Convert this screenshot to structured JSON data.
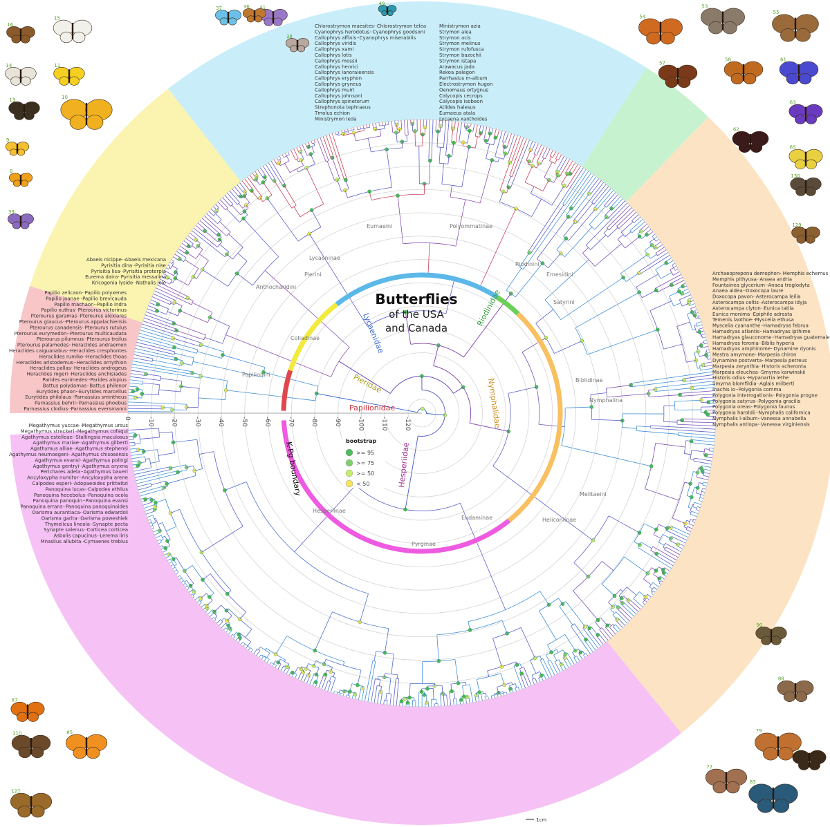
{
  "title": {
    "line1": "Butterflies",
    "line2": "of the USA",
    "line3": "and Canada"
  },
  "kpg_label": "K-Pg boundary",
  "axis_ticks": [
    "0",
    "-10",
    "-20",
    "-30",
    "-40",
    "-50",
    "-60",
    "-70",
    "-80",
    "-90",
    "-100",
    "-110",
    "-120"
  ],
  "legend": {
    "title": "bootstrap",
    "items": [
      {
        "label": ">= 95",
        "color": "#4cbb5a"
      },
      {
        "label": ">= 75",
        "color": "#7fd06a"
      },
      {
        "label": ">= 50",
        "color": "#c8ec6a"
      },
      {
        "label": "< 50",
        "color": "#f6e45a"
      }
    ]
  },
  "scale_bar": "1cm",
  "families": [
    {
      "name": "Papilionidae",
      "bg": "#f9c6c8",
      "arc": "#e0474c",
      "text": "#d0303a"
    },
    {
      "name": "Pieridae",
      "bg": "#fbf4b0",
      "arc": "#f2ea3c",
      "text": "#a89a10"
    },
    {
      "name": "Lycaenidae",
      "bg": "#c9eef9",
      "arc": "#5bb8e8",
      "text": "#3a6ad0"
    },
    {
      "name": "Riodinidae",
      "bg": "#c6f2cf",
      "arc": "#6ccf5a",
      "text": "#3aa040"
    },
    {
      "name": "Nymphalidae",
      "bg": "#fbe3c3",
      "arc": "#f8c060",
      "text": "#d09020"
    },
    {
      "name": "Hesperiidae",
      "bg": "#f6c1f4",
      "arc": "#ee5be0",
      "text": "#a03090"
    }
  ],
  "clades": [
    "Lycaeninae",
    "Eumaeini",
    "Polyommatinae",
    "Anthocharidini",
    "Pierini",
    "Coliadinae",
    "Papilionini",
    "Riodinini",
    "Emesidini",
    "Satyrini",
    "Biblidinae",
    "Nymphalina",
    "Melitaeini",
    "Heliconiinae",
    "Eudaminae",
    "Pyrginae",
    "Hesperiinae"
  ],
  "species": {
    "Papilionidae": [
      "Papilio zelicaon··Papilio polyxenes",
      "Papilio joanae··Papilio brevicauda",
      "Papilio machaon··Papilio indra",
      "Papilio xuthus··Pterourus victorinus",
      "Pterourus garamas··Pterourus alexiares",
      "Pterourus glaucus··Pterourus appalachiensis",
      "Pterourus canadensis··Pterourus rutulus",
      "Pterourus eurymedon··Pterourus multicaudata",
      "Pterourus pilumnus··Pterourus troilus",
      "Pterourus palamedes··Heraclides andraemon",
      "Heraclides caiguanabus··Heraclides cresphontes",
      "Heraclides rumiko··Heraclides thoas",
      "Heraclides aristodemus··Heraclides ornythion",
      "Heraclides pallas··Heraclides androgeus",
      "Heraclides rogeri··Heraclides anchisiades",
      "Parides eurimedes··Parides alopius",
      "Battus polydamas··Battus philenor",
      "Eurytides phaon··Eurytides marcellus",
      "Eurytides philolaus··Parnassius smintheus",
      "Parnassius behrii··Parnassius phoebus",
      "Parnassius clodius··Parnassius eversmanni"
    ],
    "Pieridae": [
      "Abaeis nicippe··Abaeis mexicana",
      "Pyrisitia dina··Pyrisitia nise",
      "Pyrisitia lisa··Pyrisitia proterpia",
      "Eurema daira··Pyrisitia messalina",
      "Kricogonia lyside··Nathalis iole"
    ],
    "Lycaenidae": [
      "Chlorostrymon maesites··Chlorostrymon telea",
      "Cyanophrys herodotus··Cyanophrys goodsoni",
      "Callophrys affinis··Cyanophrys miserabilis",
      "Callophrys viridis",
      "Callophrys xami",
      "Callophrys lotis",
      "Callophrys mossii",
      "Callophrys henrici",
      "Callophrys lanoraieensis",
      "Callophrys eryphon",
      "Callophrys gryneus",
      "Callophrys muiri",
      "Callophrys johnsoni",
      "Callophrys spinetorum",
      "Strephonota tephraeus",
      "Tmolus echion",
      "Ministrymon leda",
      "Ministrymon azia",
      "Strymon alea",
      "Strymon acis",
      "Strymon melinus",
      "Strymon rufofusca",
      "Strymon bazochii",
      "Strymon istapa",
      "Arawacus jada",
      "Rekoa palegon",
      "Parrhasius m-album",
      "Electrostrymon hugon",
      "Oenomaus ortygnus",
      "Calycopis cecrops",
      "Calycopis isobeon",
      "Atlides halesus",
      "Eumaeus atala",
      "Lycaena xanthoides"
    ],
    "Nymphalidae": [
      "Archaeoprepona demophon··Memphis echemus",
      "Memphis pithyusa··Anaea andria",
      "Fountainea glycerium··Anaea troglodyta",
      "Anaea aidea··Doxocopa laure",
      "Doxocopa pavon··Asterocampa leilia",
      "Asterocampa celtis··Asterocampa idyja",
      "Asterocampa clyton··Eunica tatila",
      "Eunica monima··Epiphile adrasta",
      "Temenis laothoe··Myscelia ethusa",
      "Myscelia cyananthe··Hamadryas februa",
      "Hamadryas atlantis··Hamadryas ipthime",
      "Hamadryas glauconome··Hamadryas guatemalena",
      "Hamadryas feronia··Biblis hyperia",
      "Hamadryas amphinome··Dynamine dyonis",
      "Mestra amymone··Marpesia chiron",
      "Dynamine postverta··Marpesia petreus",
      "Marpesia zerynthia··Historis acheronta",
      "Marpesia eleuchea··Smyrna karwinskii",
      "Historis odius··Hypanartia lethe",
      "Smyrna blomfildia··Aglais milberti",
      "Inachis io··Polygonia comma",
      "Polygonia interrogationis··Polygonia progne",
      "Polygonia satyrus··Polygonia gracilis",
      "Polygonia oreas··Polygonia faunus",
      "Polygonia haroldii··Nymphalis californica",
      "Nymphalis l-album··Vanessa annabella",
      "Nymphalis antiopa··Vanessa virginiensis"
    ],
    "Hesperiidae": [
      "Megathymus yuccae··Megathymus ursus",
      "Megathymus streckeri··Megathymus cofaqui",
      "Agathymus estelleae··Stallingsia maculosus",
      "Agathymus mariae··Agathymus gilberti",
      "Agathymus alliae··Agathymus stephensi",
      "Agathymus neumoegeni··Agathymus chisosensis",
      "Agathymus evansi··Agathymus polingi",
      "Agathymus gentryi··Agathymus aryxna",
      "Perichares adela··Agathymus baueri",
      "Ancyloxypha numitor··Ancyloxypha arene",
      "Calpodes esperi··Adopaeoides prittwitzi",
      "Panoquina lucas··Calpodes ethlius",
      "Panoquina hecebolus··Panoquina ocola",
      "Panoquina panoquin··Panoquina evansi",
      "Panoquina errans··Panoquina panoquinoides",
      "Oarisma aurantiaca··Oarisma edwardsii",
      "Oarisma garita··Oarisma poweshiek",
      "Thymelicus lineola··Synapte pecta",
      "Synapte salenus··Corticea corticea",
      "Asbolis capucinus··Lerema liris",
      "Mnasilus allubita··Cymaenes trebius"
    ]
  },
  "photos": [
    {
      "n": "16",
      "color": "#8a5a2a"
    },
    {
      "n": "15",
      "color": "#f2f0ea"
    },
    {
      "n": "14",
      "color": "#e8e4da"
    },
    {
      "n": "11",
      "color": "#f5d020"
    },
    {
      "n": "13",
      "color": "#3a3020"
    },
    {
      "n": "10",
      "color": "#f0b020"
    },
    {
      "n": "9",
      "color": "#f5c030"
    },
    {
      "n": "8",
      "color": "#f0a018"
    },
    {
      "n": "39",
      "color": "#8a6ac0"
    },
    {
      "n": "37",
      "color": "#6ac0e8"
    },
    {
      "n": "41",
      "color": "#9a78c8"
    },
    {
      "n": "36",
      "color": "#c07830"
    },
    {
      "n": "38",
      "color": "#b8a8a0"
    },
    {
      "n": "49",
      "color": "#2a9ab0"
    },
    {
      "n": "54",
      "color": "#d06a20"
    },
    {
      "n": "53",
      "color": "#8a7a6a"
    },
    {
      "n": "55",
      "color": "#9a6a3a"
    },
    {
      "n": "57",
      "color": "#7a3a1a"
    },
    {
      "n": "58",
      "color": "#c06a20"
    },
    {
      "n": "61",
      "color": "#4a4ad0"
    },
    {
      "n": "62",
      "color": "#3a1a1a"
    },
    {
      "n": "63",
      "color": "#6a3ac0"
    },
    {
      "n": "65",
      "color": "#e8d040"
    },
    {
      "n": "130",
      "color": "#5a4a3a"
    },
    {
      "n": "129",
      "color": "#8a6030"
    },
    {
      "n": "127",
      "color": "#9a6a2a"
    },
    {
      "n": "110",
      "color": "#6a4a2a"
    },
    {
      "n": "87",
      "color": "#e07010"
    },
    {
      "n": "85",
      "color": "#f09020"
    },
    {
      "n": "83",
      "color": "#2a5a7a"
    },
    {
      "n": "86",
      "color": "#3a2a1a"
    },
    {
      "n": "79",
      "color": "#c07030"
    },
    {
      "n": "77",
      "color": "#a07050"
    },
    {
      "n": "88",
      "color": "#8a6a4a"
    },
    {
      "n": "90",
      "color": "#6a5a3a"
    }
  ]
}
